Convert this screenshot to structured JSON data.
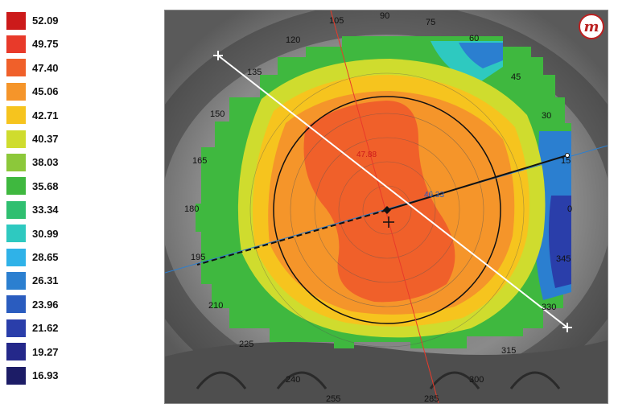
{
  "legend": {
    "items": [
      {
        "label": "52.09",
        "color": "#cc1a1a"
      },
      {
        "label": "49.75",
        "color": "#e83a2a"
      },
      {
        "label": "47.40",
        "color": "#f0602a"
      },
      {
        "label": "45.06",
        "color": "#f5952a"
      },
      {
        "label": "42.71",
        "color": "#f6c41e"
      },
      {
        "label": "40.37",
        "color": "#cfdc2e"
      },
      {
        "label": "38.03",
        "color": "#8cc83a"
      },
      {
        "label": "35.68",
        "color": "#3fb83f"
      },
      {
        "label": "33.34",
        "color": "#2fbf70"
      },
      {
        "label": "30.99",
        "color": "#2ec9c0"
      },
      {
        "label": "28.65",
        "color": "#2fb2e8"
      },
      {
        "label": "26.31",
        "color": "#2b7fd0"
      },
      {
        "label": "23.96",
        "color": "#2a5cbf"
      },
      {
        "label": "21.62",
        "color": "#2a3eaa"
      },
      {
        "label": "19.27",
        "color": "#24288a"
      },
      {
        "label": "16.93",
        "color": "#1c1c66"
      }
    ]
  },
  "map": {
    "degree_labels": [
      "90",
      "75",
      "60",
      "45",
      "30",
      "15",
      "0",
      "345",
      "330",
      "315",
      "300",
      "285",
      "255",
      "240",
      "225",
      "210",
      "195",
      "180",
      "165",
      "150",
      "135",
      "120",
      "105"
    ],
    "steep_k": "47.88",
    "flat_k": "46.33"
  },
  "logo": {
    "text": "m"
  }
}
